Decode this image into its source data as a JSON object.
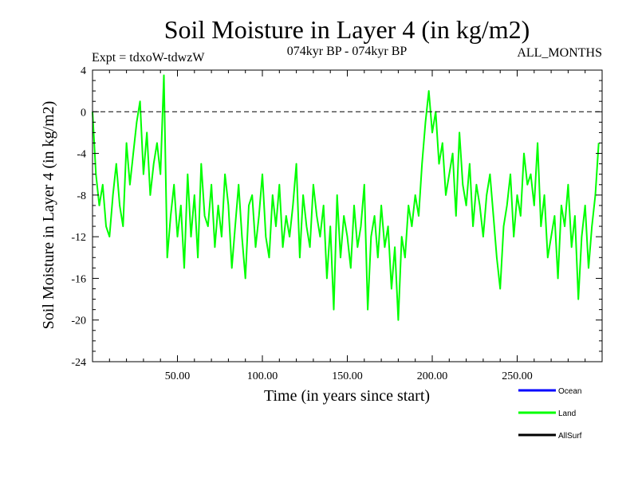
{
  "chart_data": {
    "type": "line",
    "title": "Soil Moisture in Layer 4 (in kg/m2)",
    "subtitle_left": "Expt = tdxoW-tdwzW",
    "subtitle_center": "074kyr BP - 074kyr BP",
    "subtitle_right": "ALL_MONTHS",
    "xlabel": "Time (in years since start)",
    "ylabel": "Soil Moisture in Layer 4 (in kg/m2)",
    "xlim": [
      0,
      300
    ],
    "ylim": [
      -24,
      4
    ],
    "x_ticks": [
      50,
      100,
      150,
      200,
      250
    ],
    "x_tick_labels": [
      "50.00",
      "100.00",
      "150.00",
      "200.00",
      "250.00"
    ],
    "y_ticks": [
      4,
      0,
      -4,
      -8,
      -12,
      -16,
      -20,
      -24
    ],
    "y_tick_labels": [
      "4",
      "0",
      "-4",
      "-8",
      "-12",
      "-16",
      "-20",
      "-24"
    ],
    "reference_line_y": 0,
    "legend_position": "bottom-right",
    "series": [
      {
        "name": "Ocean",
        "color": "#0000ff",
        "x": [],
        "y": []
      },
      {
        "name": "Land",
        "color": "#00ff00",
        "x": [
          0,
          2,
          4,
          6,
          8,
          10,
          12,
          14,
          16,
          18,
          20,
          22,
          24,
          26,
          28,
          30,
          32,
          34,
          36,
          38,
          40,
          42,
          44,
          46,
          48,
          50,
          52,
          54,
          56,
          58,
          60,
          62,
          64,
          66,
          68,
          70,
          72,
          74,
          76,
          78,
          80,
          82,
          84,
          86,
          88,
          90,
          92,
          94,
          96,
          98,
          100,
          102,
          104,
          106,
          108,
          110,
          112,
          114,
          116,
          118,
          120,
          122,
          124,
          126,
          128,
          130,
          132,
          134,
          136,
          138,
          140,
          142,
          144,
          146,
          148,
          150,
          152,
          154,
          156,
          158,
          160,
          162,
          164,
          166,
          168,
          170,
          172,
          174,
          176,
          178,
          180,
          182,
          184,
          186,
          188,
          190,
          192,
          194,
          196,
          198,
          200,
          202,
          204,
          206,
          208,
          210,
          212,
          214,
          216,
          218,
          220,
          222,
          224,
          226,
          228,
          230,
          232,
          234,
          236,
          238,
          240,
          242,
          244,
          246,
          248,
          250,
          252,
          254,
          256,
          258,
          260,
          262,
          264,
          266,
          268,
          270,
          272,
          274,
          276,
          278,
          280,
          282,
          284,
          286,
          288,
          290,
          292,
          294,
          296,
          298
        ],
        "y": [
          0.0,
          -6,
          -9,
          -7,
          -11,
          -12,
          -8,
          -5,
          -9,
          -11,
          -3,
          -7,
          -4,
          -1,
          1,
          -6,
          -2,
          -8,
          -5,
          -3,
          -6,
          3.5,
          -14,
          -10,
          -7,
          -12,
          -9,
          -15,
          -6,
          -12,
          -8,
          -14,
          -5,
          -10,
          -11,
          -7,
          -13,
          -9,
          -12,
          -6,
          -9,
          -15,
          -11,
          -7,
          -12,
          -16,
          -9,
          -8,
          -13,
          -10,
          -6,
          -12,
          -14,
          -8,
          -11,
          -7,
          -13,
          -10,
          -12,
          -9,
          -5,
          -14,
          -8,
          -11,
          -13,
          -7,
          -10,
          -12,
          -9,
          -16,
          -11,
          -19,
          -8,
          -14,
          -10,
          -12,
          -15,
          -9,
          -13,
          -11,
          -7,
          -19,
          -12,
          -10,
          -14,
          -9,
          -13,
          -11,
          -17,
          -13,
          -20,
          -12,
          -14,
          -9,
          -11,
          -8,
          -10,
          -5,
          -1,
          2,
          -2,
          0,
          -5,
          -3,
          -8,
          -6,
          -4,
          -10,
          -2,
          -7,
          -9,
          -5,
          -11,
          -7,
          -9,
          -12,
          -8,
          -6,
          -10,
          -14,
          -17,
          -11,
          -9,
          -6,
          -12,
          -8,
          -10,
          -4,
          -7,
          -6,
          -9,
          -3,
          -11,
          -8,
          -14,
          -12,
          -10,
          -16,
          -9,
          -11,
          -7,
          -13,
          -10,
          -18,
          -12,
          -9,
          -15,
          -11,
          -8,
          -3
        ]
      },
      {
        "name": "AllSurf",
        "color": "#000000",
        "x": [],
        "y": []
      }
    ]
  }
}
